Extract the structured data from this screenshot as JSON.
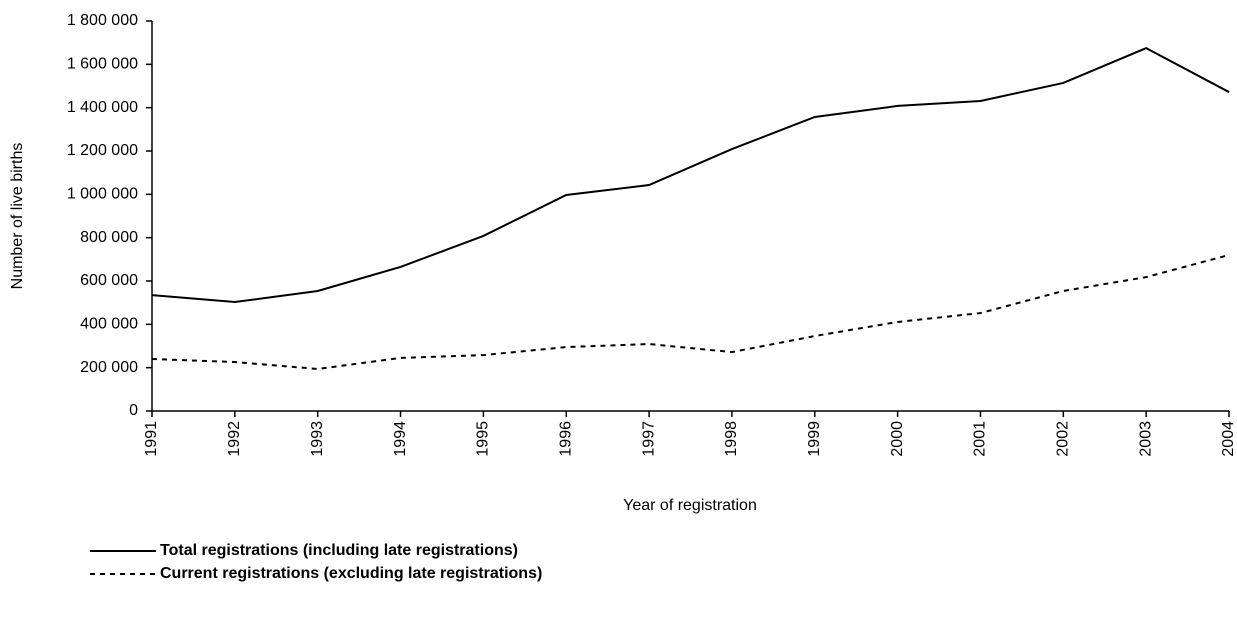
{
  "chart_data": {
    "type": "line",
    "x_label": "Year of registration",
    "y_label": "Number of live births",
    "categories": [
      "1991",
      "1992",
      "1993",
      "1994",
      "1995",
      "1996",
      "1997",
      "1998",
      "1999",
      "2000",
      "2001",
      "2002",
      "2003",
      "2004"
    ],
    "series": [
      {
        "name": "Total registrations (including late registrations)",
        "color": "#000000",
        "line_style": "solid",
        "values": [
          535000,
          503000,
          554000,
          665000,
          808000,
          997000,
          1043000,
          1209000,
          1357000,
          1408000,
          1431000,
          1514000,
          1675000,
          1472000
        ]
      },
      {
        "name": "Current registrations (excluding late registrations)",
        "color": "#000000",
        "line_style": "dashed",
        "values": [
          240000,
          226000,
          194000,
          245000,
          258000,
          295000,
          309000,
          272000,
          346000,
          411000,
          452000,
          554000,
          618000,
          720000
        ]
      }
    ],
    "ylim": [
      0,
      1800000
    ],
    "yticks": [
      0,
      {
        "value": 200000,
        "label": "200 000"
      },
      {
        "value": 400000,
        "label": "400 000"
      },
      {
        "value": 600000,
        "label": "600 000"
      },
      {
        "value": 800000,
        "label": "800 000"
      },
      {
        "value": 1000000,
        "label": "1 000 000"
      },
      {
        "value": 1200000,
        "label": "1 200 000"
      },
      {
        "value": 1400000,
        "label": "1 400 000"
      },
      {
        "value": 1600000,
        "label": "1 600 000"
      },
      {
        "value": 1800000,
        "label": "1 800 000"
      }
    ],
    "grid": false,
    "legend_position": "bottom-left"
  }
}
